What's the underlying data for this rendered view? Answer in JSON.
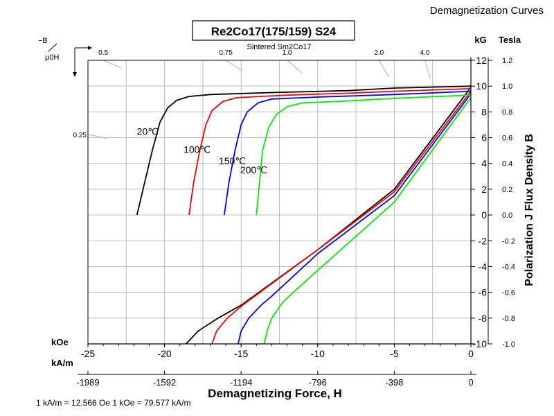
{
  "header": {
    "corner_title": "Demagnetization Curves",
    "title": "Re2Co17(175/159) S24",
    "subtitle": "Sintered Sm2Co17",
    "footnote": "1 kA/m = 12.566 Oe 1 kOe = 79.577 kA/m"
  },
  "chart_data": {
    "type": "line",
    "xlabel": "Demagnetizing Force, H",
    "ylabel": "Polarization J Flux Density B",
    "x_unit_top": "kOe",
    "x_unit_bottom": "kA/m",
    "y_unit_kg": "kG",
    "y_unit_tesla": "Tesla",
    "xlim": [
      -25,
      0
    ],
    "ylim": [
      -10,
      12
    ],
    "x_ticks": [
      -25,
      -20,
      -15,
      -10,
      -5,
      0
    ],
    "x_ticks_kam": [
      "-1989",
      "-1592",
      "-1194",
      "-796",
      "-398",
      "0"
    ],
    "y_ticks": [
      12,
      10,
      8,
      6,
      4,
      2,
      0,
      -2,
      -4,
      -6,
      -8,
      -10
    ],
    "y_ticks_tesla": [
      "1.2",
      "1.0",
      "0.8",
      "0.6",
      "0.4",
      "0.2",
      "0.0",
      "-0.2",
      "-0.4",
      "-0.6",
      "-0.8",
      "-1.0"
    ],
    "grid": true,
    "mu_label_top": "−B",
    "mu_label_bottom": "μ0H",
    "permeance_lines": [
      {
        "label": "0.5",
        "slope": 0.5
      },
      {
        "label": "0.75",
        "slope": 0.75
      },
      {
        "label": "1.0",
        "slope": 1.0
      },
      {
        "label": "2.0",
        "slope": 2.0
      },
      {
        "label": "4.0",
        "slope": 4.0
      },
      {
        "label": "0.25",
        "slope": 0.25
      }
    ],
    "series": [
      {
        "name": "20℃",
        "color": "#000000",
        "J": [
          [
            -21.8,
            0
          ],
          [
            -21.3,
            2.5
          ],
          [
            -20.8,
            5
          ],
          [
            -20.3,
            7.2
          ],
          [
            -19.8,
            8.3
          ],
          [
            -19.2,
            8.9
          ],
          [
            -18.4,
            9.2
          ],
          [
            -17,
            9.35
          ],
          [
            -13,
            9.5
          ],
          [
            -8,
            9.65
          ],
          [
            -5,
            9.85
          ],
          [
            0,
            10.0
          ]
        ],
        "B": [
          [
            -18.6,
            -10
          ],
          [
            -17.8,
            -9
          ],
          [
            -16.5,
            -8
          ],
          [
            -15,
            -7
          ],
          [
            -10,
            -2.7
          ],
          [
            -5,
            2
          ],
          [
            0,
            9.9
          ]
        ]
      },
      {
        "name": "100℃",
        "color": "#ff0000",
        "J": [
          [
            -18.4,
            0
          ],
          [
            -18.1,
            2.5
          ],
          [
            -17.7,
            5
          ],
          [
            -17.3,
            7.0
          ],
          [
            -16.9,
            8.1
          ],
          [
            -16.2,
            8.8
          ],
          [
            -15.3,
            9.1
          ],
          [
            -12,
            9.3
          ],
          [
            -8,
            9.45
          ],
          [
            -5,
            9.6
          ],
          [
            0,
            9.8
          ]
        ],
        "B": [
          [
            -16.9,
            -10
          ],
          [
            -16.6,
            -9
          ],
          [
            -15.9,
            -8
          ],
          [
            -14.9,
            -7
          ],
          [
            -14,
            -6.2
          ],
          [
            -10,
            -2.7
          ],
          [
            -5,
            1.8
          ],
          [
            0,
            9.6
          ]
        ]
      },
      {
        "name": "150℃",
        "color": "#0000ff",
        "J": [
          [
            -16.1,
            0
          ],
          [
            -15.8,
            2.5
          ],
          [
            -15.4,
            5
          ],
          [
            -15.0,
            7.0
          ],
          [
            -14.6,
            8.0
          ],
          [
            -13.9,
            8.7
          ],
          [
            -13.0,
            9.0
          ],
          [
            -10,
            9.15
          ],
          [
            -5,
            9.35
          ],
          [
            0,
            9.6
          ]
        ],
        "B": [
          [
            -15.2,
            -10
          ],
          [
            -15,
            -9
          ],
          [
            -14.5,
            -8
          ],
          [
            -13.7,
            -7
          ],
          [
            -13,
            -6.3
          ],
          [
            -10,
            -3.0
          ],
          [
            -5,
            1.5
          ],
          [
            0,
            9.4
          ]
        ]
      },
      {
        "name": "200℃",
        "color": "#00ee00",
        "J": [
          [
            -14.0,
            0
          ],
          [
            -13.8,
            2.5
          ],
          [
            -13.6,
            5
          ],
          [
            -13.2,
            6.8
          ],
          [
            -12.7,
            7.8
          ],
          [
            -12.0,
            8.4
          ],
          [
            -11.0,
            8.7
          ],
          [
            -8,
            8.85
          ],
          [
            -5,
            9.05
          ],
          [
            0,
            9.3
          ]
        ],
        "B": [
          [
            -13.5,
            -10
          ],
          [
            -13.3,
            -9
          ],
          [
            -13.0,
            -8
          ],
          [
            -12.3,
            -6.8
          ],
          [
            -11.5,
            -5.9
          ],
          [
            -10,
            -4.3
          ],
          [
            -5,
            1.0
          ],
          [
            0,
            9.1
          ]
        ]
      }
    ]
  }
}
